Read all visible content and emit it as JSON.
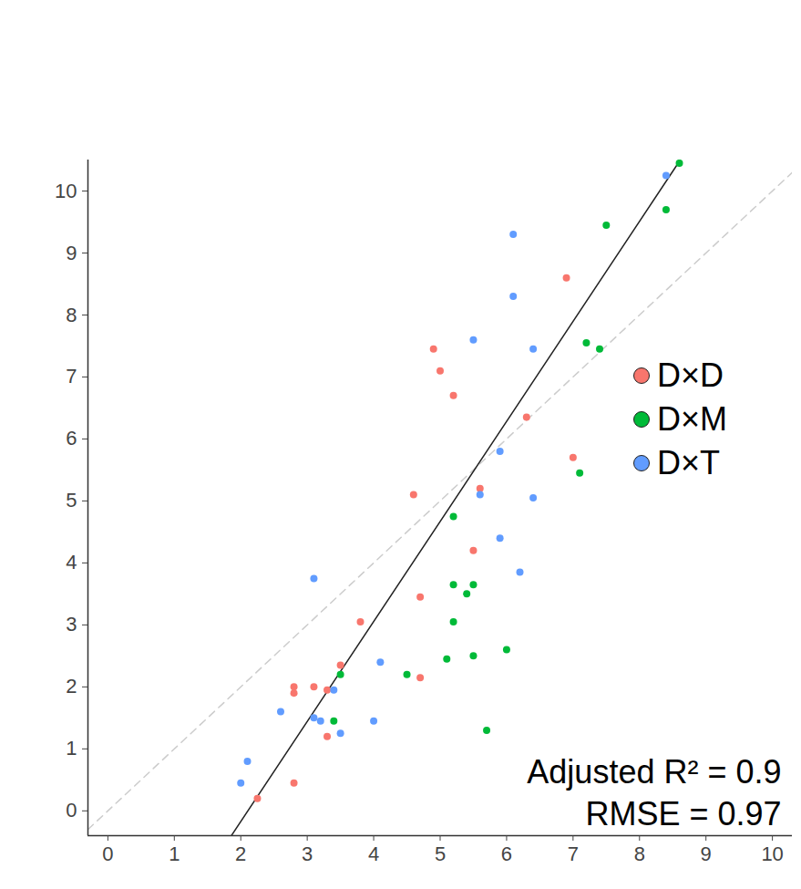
{
  "chart_data": {
    "type": "scatter",
    "series": [
      {
        "name": "D×D",
        "color": "#f8766d",
        "x": [
          4.9,
          5.0,
          5.2,
          6.9,
          6.3,
          7.0,
          4.6,
          5.6,
          5.5,
          4.7,
          3.8,
          3.5,
          3.1,
          2.8,
          2.8,
          3.3,
          4.7,
          3.3,
          2.8,
          2.25
        ],
        "y": [
          7.45,
          7.1,
          6.7,
          8.6,
          6.35,
          5.7,
          5.1,
          5.2,
          4.2,
          3.45,
          3.05,
          2.35,
          2.0,
          2.0,
          1.9,
          1.95,
          2.15,
          1.2,
          0.45,
          0.2
        ]
      },
      {
        "name": "D×M",
        "color": "#00ba38",
        "x": [
          8.6,
          7.5,
          8.4,
          7.2,
          7.4,
          7.1,
          5.2,
          5.2,
          5.5,
          5.4,
          5.2,
          5.1,
          4.5,
          5.5,
          6.0,
          3.5,
          3.4,
          5.7
        ],
        "y": [
          10.45,
          9.45,
          9.7,
          7.55,
          7.45,
          5.45,
          4.75,
          3.65,
          3.65,
          3.5,
          3.05,
          2.45,
          2.2,
          2.5,
          2.6,
          2.2,
          1.45,
          1.3
        ]
      },
      {
        "name": "D×T",
        "color": "#619cff",
        "x": [
          8.4,
          6.1,
          6.1,
          5.5,
          6.4,
          5.9,
          5.6,
          6.4,
          5.9,
          6.2,
          3.1,
          4.1,
          3.4,
          2.6,
          3.1,
          3.2,
          4.0,
          3.5,
          2.1,
          2.0
        ],
        "y": [
          10.25,
          9.3,
          8.3,
          7.6,
          7.45,
          5.8,
          5.1,
          5.05,
          4.4,
          3.85,
          3.75,
          2.4,
          1.95,
          1.6,
          1.5,
          1.45,
          1.45,
          1.25,
          0.8,
          0.45
        ]
      }
    ],
    "fit_line": {
      "x": [
        1.84,
        8.57
      ],
      "y": [
        -0.43,
        10.43
      ]
    },
    "reference_line": {
      "x": [
        -0.3,
        10.3
      ],
      "y": [
        -0.3,
        10.3
      ]
    },
    "annotations": [
      "Adjusted R² = 0.9",
      "RMSE = 0.97"
    ],
    "xlim": [
      -0.3,
      10.3
    ],
    "ylim": [
      -0.4,
      10.5
    ],
    "xticks": [
      0,
      1,
      2,
      3,
      4,
      5,
      6,
      7,
      8,
      9,
      10
    ],
    "yticks": [
      0,
      1,
      2,
      3,
      4,
      5,
      6,
      7,
      8,
      9,
      10
    ],
    "grid": false,
    "legend": "right"
  }
}
